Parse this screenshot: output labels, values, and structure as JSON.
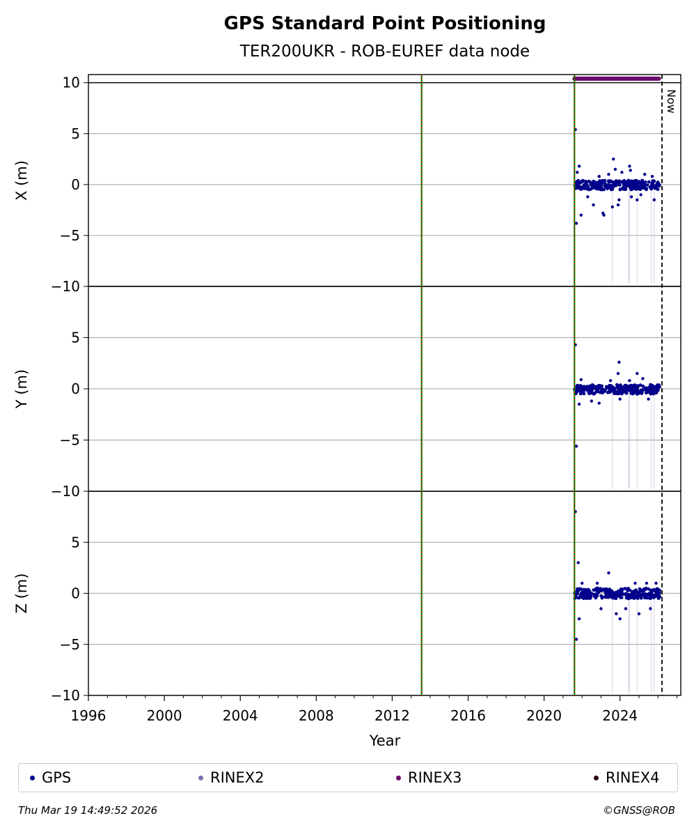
{
  "chart_data": {
    "type": "scatter",
    "title": "GPS Standard Point Positioning",
    "subtitle": "TER200UKR - ROB-EUREF data node",
    "xlabel": "Year",
    "xlim": [
      1996,
      2027.2
    ],
    "x_ticks": [
      1996,
      2000,
      2004,
      2008,
      2012,
      2016,
      2020,
      2024
    ],
    "now_label": "Now",
    "now_x": 2026.21,
    "event_lines_x": [
      2013.55,
      2021.6
    ],
    "grid": "horizontal",
    "legend_position": "bottom",
    "legend": [
      {
        "name": "GPS",
        "color": "#00008b"
      },
      {
        "name": "RINEX2",
        "color": "#7b6fb0"
      },
      {
        "name": "RINEX3",
        "color": "#6a0a6a"
      },
      {
        "name": "RINEX4",
        "color": "#2a0018"
      }
    ],
    "rinex3_availability": {
      "x_range": [
        2021.6,
        2026.05
      ],
      "y": 10.4,
      "color": "#6a0a6a"
    },
    "panels": [
      {
        "ylabel": "X (m)",
        "ylim": [
          -10,
          10.8
        ],
        "y_ticks": [
          10,
          5,
          0,
          -5,
          -10
        ],
        "series": [
          {
            "name": "GPS",
            "color": "#00008b",
            "points": [
              [
                2021.65,
                5.4
              ],
              [
                2021.7,
                -3.8
              ],
              [
                2021.75,
                1.2
              ],
              [
                2021.85,
                1.8
              ],
              [
                2021.95,
                -3.0
              ],
              [
                2022.3,
                -1.2
              ],
              [
                2022.6,
                -2.0
              ],
              [
                2022.9,
                0.8
              ],
              [
                2023.1,
                -2.8
              ],
              [
                2023.15,
                -3.0
              ],
              [
                2023.4,
                1.0
              ],
              [
                2023.6,
                -2.2
              ],
              [
                2023.65,
                2.5
              ],
              [
                2023.75,
                1.5
              ],
              [
                2023.9,
                -2.0
              ],
              [
                2023.95,
                -1.5
              ],
              [
                2024.1,
                1.2
              ],
              [
                2024.5,
                1.8
              ],
              [
                2024.55,
                1.4
              ],
              [
                2024.6,
                -1.2
              ],
              [
                2024.9,
                -1.5
              ],
              [
                2025.1,
                -1.0
              ],
              [
                2025.3,
                1.0
              ],
              [
                2025.7,
                0.8
              ],
              [
                2025.8,
                -1.5
              ]
            ]
          }
        ],
        "main_band": {
          "x_range": [
            2021.6,
            2026.1
          ],
          "y_range": [
            -0.5,
            0.4
          ]
        }
      },
      {
        "ylabel": "Y (m)",
        "ylim": [
          -10,
          10
        ],
        "y_ticks": [
          5,
          0,
          -5,
          -10
        ],
        "series": [
          {
            "name": "GPS",
            "color": "#00008b",
            "points": [
              [
                2021.65,
                4.3
              ],
              [
                2021.7,
                -5.6
              ],
              [
                2021.85,
                -1.5
              ],
              [
                2021.95,
                0.9
              ],
              [
                2022.5,
                -1.2
              ],
              [
                2022.9,
                -1.4
              ],
              [
                2023.5,
                0.8
              ],
              [
                2023.9,
                1.5
              ],
              [
                2023.95,
                2.6
              ],
              [
                2024.0,
                -1.0
              ],
              [
                2024.5,
                0.8
              ],
              [
                2024.9,
                1.5
              ],
              [
                2025.2,
                1.0
              ],
              [
                2025.5,
                -1.0
              ]
            ]
          }
        ],
        "main_band": {
          "x_range": [
            2021.6,
            2026.1
          ],
          "y_range": [
            -0.5,
            0.4
          ]
        }
      },
      {
        "ylabel": "Z (m)",
        "ylim": [
          -10,
          10
        ],
        "y_ticks": [
          5,
          0,
          -5,
          -10
        ],
        "series": [
          {
            "name": "GPS",
            "color": "#00008b",
            "points": [
              [
                2021.65,
                8.0
              ],
              [
                2021.7,
                -4.5
              ],
              [
                2021.8,
                3.0
              ],
              [
                2021.85,
                -2.5
              ],
              [
                2022.0,
                1.0
              ],
              [
                2022.8,
                1.0
              ],
              [
                2023.0,
                -1.5
              ],
              [
                2023.4,
                2.0
              ],
              [
                2023.8,
                -2.0
              ],
              [
                2024.0,
                -2.5
              ],
              [
                2024.3,
                -1.5
              ],
              [
                2024.8,
                1.0
              ],
              [
                2025.0,
                -2.0
              ],
              [
                2025.4,
                1.0
              ],
              [
                2025.6,
                -1.5
              ],
              [
                2025.9,
                1.0
              ]
            ]
          }
        ],
        "main_band": {
          "x_range": [
            2021.6,
            2026.1
          ],
          "y_range": [
            -0.5,
            0.5
          ]
        }
      }
    ]
  },
  "footer": {
    "timestamp": "Thu Mar 19 14:49:52 2026",
    "copyright": "©GNSS@ROB"
  }
}
